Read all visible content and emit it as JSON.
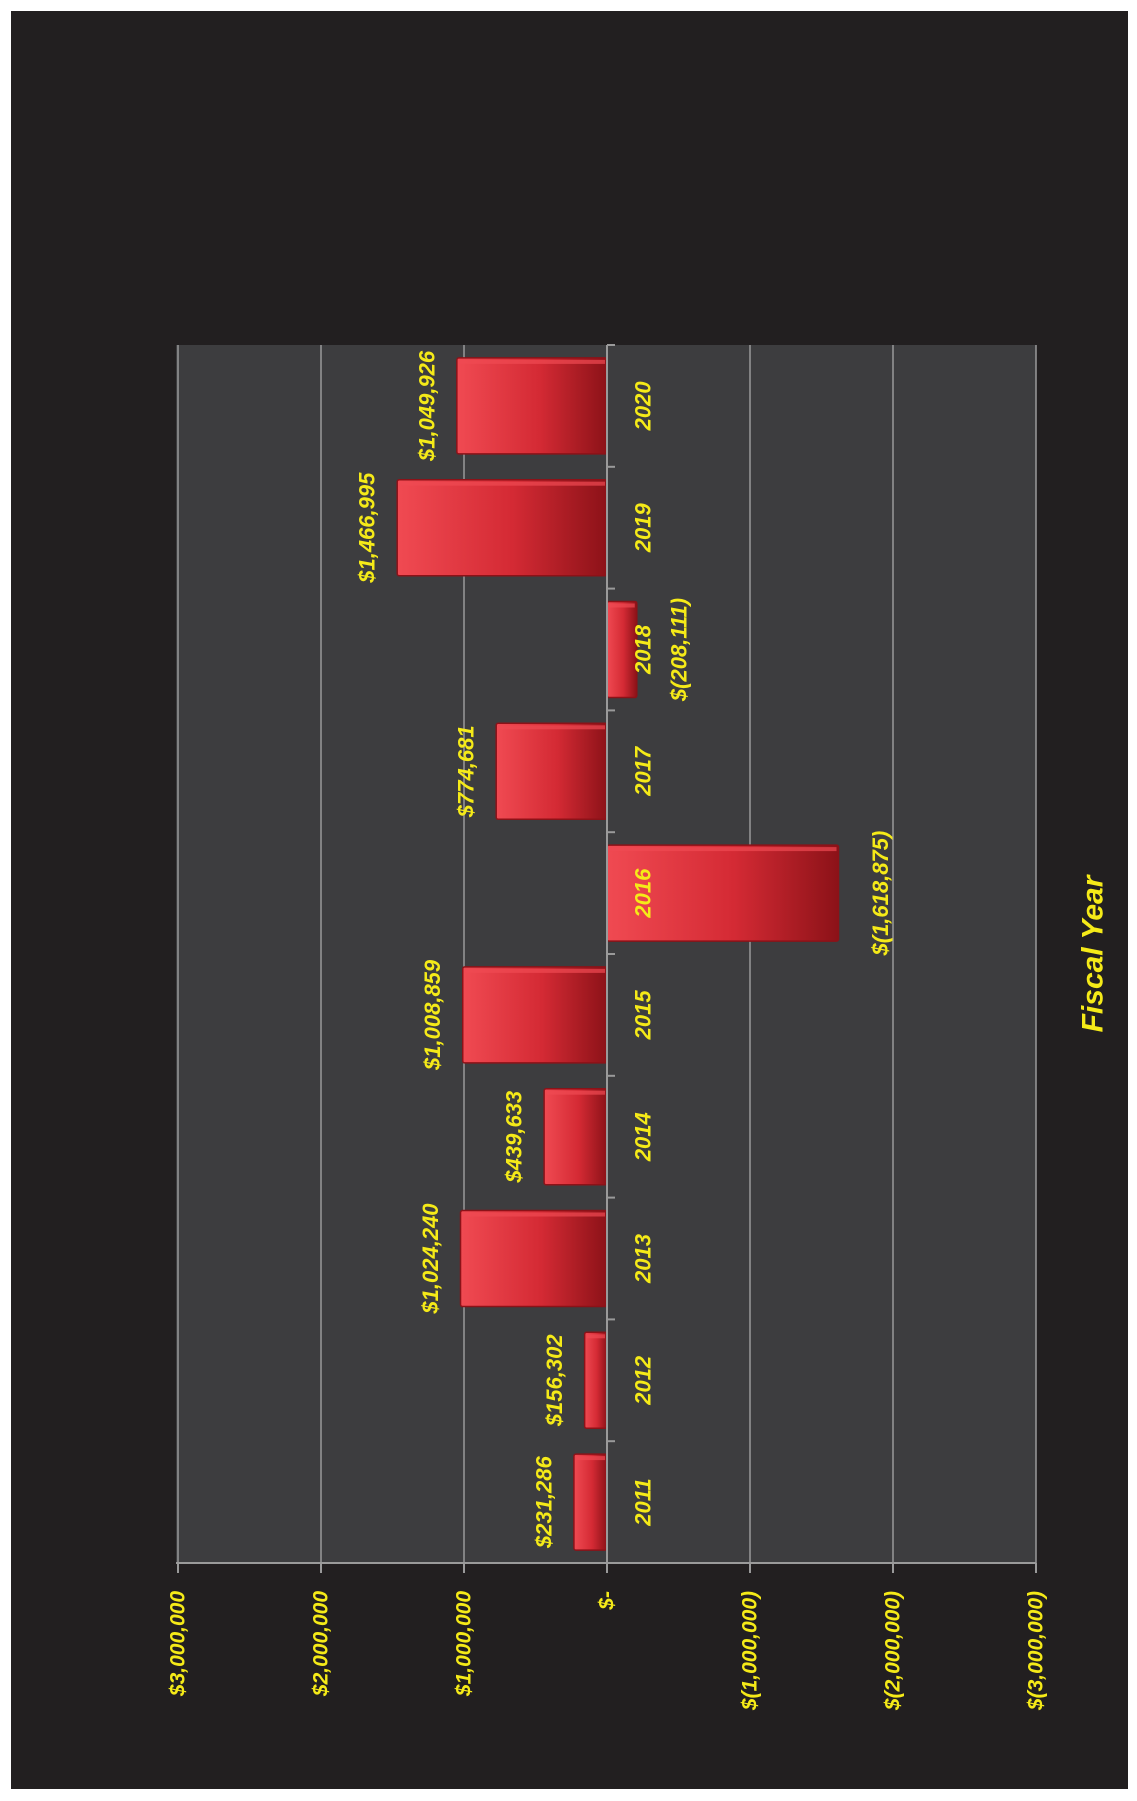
{
  "chart_data": {
    "type": "bar",
    "orientation": "rotated (categories along vertical axis, values increase leftward)",
    "categories": [
      "2011",
      "2012",
      "2013",
      "2014",
      "2015",
      "2016",
      "2017",
      "2018",
      "2019",
      "2020"
    ],
    "values": [
      231286,
      156302,
      1024240,
      439633,
      1008859,
      -1618875,
      774681,
      -208111,
      1466995,
      1049926
    ],
    "data_labels": [
      "$231,286",
      "$156,302",
      "$1,024,240",
      "$439,633",
      "$1,008,859",
      "$(1,618,875)",
      "$774,681",
      "$(208,111)",
      "$1,466,995",
      "$1,049,926"
    ],
    "title": "",
    "xlabel": "Fiscal Year",
    "ylabel": "",
    "ylim": [
      -3000000,
      3000000
    ],
    "tick_values": [
      3000000,
      2000000,
      1000000,
      0,
      -1000000,
      -2000000,
      -3000000
    ],
    "tick_labels": [
      "$3,000,000",
      "$2,000,000",
      "$1,000,000",
      "$-",
      "$(1,000,000)",
      "$(2,000,000)",
      "$(3,000,000)"
    ],
    "grid": true,
    "legend": "none"
  },
  "colors": {
    "page_background": "#ffffff",
    "frame_background": "#221f20",
    "plot_background": "#3d3d3f",
    "gridline": "#9a9a9a",
    "axis": "#9a9a9a",
    "bar": "#d42a34",
    "bar_highlight": "#f04a52",
    "bar_shadow": "#8c1218",
    "label": "#f5ea18"
  }
}
